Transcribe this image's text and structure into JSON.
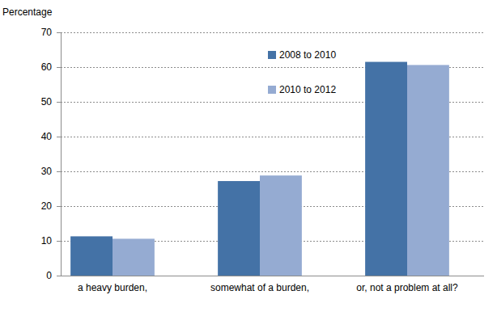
{
  "chart_data": {
    "type": "bar",
    "y_label": "Percentage",
    "categories": [
      "a heavy burden,",
      "somewhat of a burden,",
      "or, not a problem at all?"
    ],
    "series": [
      {
        "name": "2008 to 2010",
        "color": "#4472a6",
        "values": [
          11.3,
          27.2,
          61.5
        ]
      },
      {
        "name": "2010 to 2012",
        "color": "#95abd2",
        "values": [
          10.6,
          28.8,
          60.6
        ]
      }
    ],
    "ylim": [
      0,
      70
    ],
    "yticks": [
      0,
      10,
      20,
      30,
      40,
      50,
      60,
      70
    ],
    "grid": true,
    "legend": "top"
  }
}
